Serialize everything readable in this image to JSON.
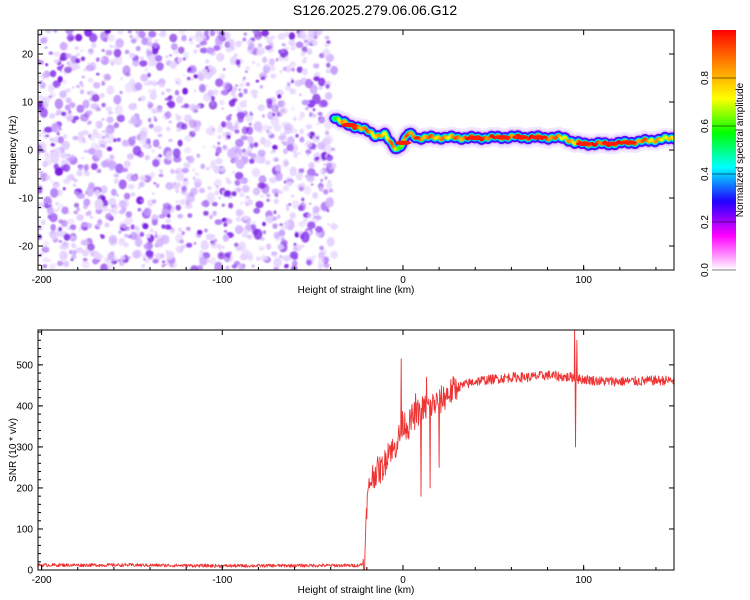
{
  "figure_title": "S126.2025.279.06.06.G12",
  "chart_data": [
    {
      "type": "heatmap",
      "title": "S126.2025.279.06.06.G12",
      "xlabel": "Height of straight line (km)",
      "ylabel": "Frequency (Hz)",
      "xlim": [
        -202,
        150
      ],
      "ylim": [
        -25,
        25
      ],
      "xticks": [
        -200,
        -100,
        0,
        100
      ],
      "yticks": [
        20,
        10,
        0,
        -10,
        -20
      ],
      "noise_region_x": [
        -202,
        -38
      ],
      "ridge": {
        "x": [
          -38,
          -35,
          -30,
          -25,
          -20,
          -15,
          -10,
          -6,
          -3,
          0,
          3,
          8,
          15,
          25,
          40,
          60,
          80,
          90,
          95,
          100,
          115,
          130,
          150
        ],
        "freq": [
          7,
          6,
          5.2,
          4.8,
          4,
          3,
          3.2,
          1,
          0.2,
          1.5,
          3.5,
          2.5,
          2.6,
          2.6,
          2.5,
          2.7,
          2.6,
          2.5,
          1.5,
          1.3,
          1.3,
          1.7,
          2.5
        ],
        "amp": [
          0.55,
          0.7,
          0.85,
          0.9,
          0.85,
          0.8,
          0.75,
          0.85,
          0.7,
          0.65,
          0.9,
          0.9,
          0.85,
          0.8,
          0.95,
          0.9,
          0.95,
          0.75,
          0.8,
          0.95,
          0.95,
          0.9,
          0.7
        ]
      },
      "colorbar": {
        "label": "Normalized spectral amplitude",
        "ticks": [
          0.0,
          0.2,
          0.4,
          0.6,
          0.8
        ],
        "range": [
          0,
          1
        ],
        "colors": [
          "#ffffff",
          "#ff00ff",
          "#2200ff",
          "#00ffff",
          "#00ff00",
          "#ffff00",
          "#ff8800",
          "#ff0000"
        ]
      }
    },
    {
      "type": "line",
      "xlabel": "Height of straight line (km)",
      "ylabel": "SNR (10 * v/v)",
      "xlim": [
        -202,
        150
      ],
      "ylim": [
        0,
        585
      ],
      "xticks": [
        -200,
        -100,
        0,
        100
      ],
      "yticks": [
        0,
        100,
        200,
        300,
        400,
        500
      ],
      "color": "#ee3333",
      "series": [
        {
          "name": "SNR",
          "x": [
            -202,
            -150,
            -100,
            -50,
            -25,
            -22,
            -21,
            -20,
            -18,
            -15,
            -12,
            -10,
            -8,
            -5,
            -3,
            -1,
            0,
            3,
            5,
            10,
            15,
            20,
            25,
            30,
            40,
            50,
            60,
            70,
            80,
            90,
            93,
            95,
            97,
            100,
            110,
            120,
            130,
            140,
            150
          ],
          "y": [
            12,
            12,
            10,
            11,
            11,
            15,
            30,
            160,
            220,
            240,
            245,
            260,
            300,
            290,
            320,
            330,
            360,
            350,
            370,
            390,
            400,
            410,
            430,
            445,
            460,
            465,
            470,
            470,
            475,
            470,
            470,
            470,
            465,
            465,
            460,
            460,
            460,
            462,
            462
          ]
        }
      ],
      "spikes": [
        {
          "x": -1,
          "y": 515
        },
        {
          "x": 7,
          "y": 430
        },
        {
          "x": 10,
          "y": 180
        },
        {
          "x": 13,
          "y": 470
        },
        {
          "x": 15,
          "y": 200
        },
        {
          "x": 17,
          "y": 420
        },
        {
          "x": 20,
          "y": 250
        },
        {
          "x": 95,
          "y": 585
        },
        {
          "x": 95.6,
          "y": 300
        },
        {
          "x": 96.3,
          "y": 560
        }
      ]
    }
  ]
}
